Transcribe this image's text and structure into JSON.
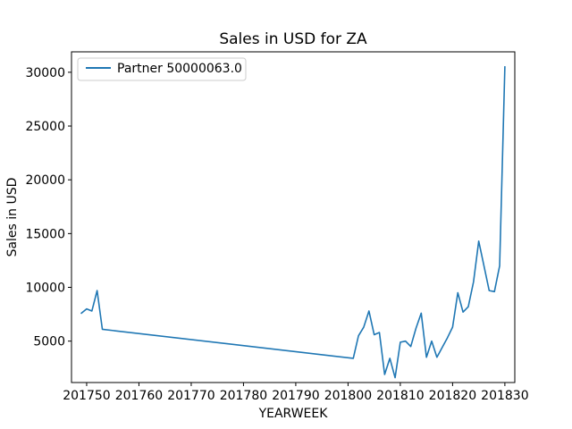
{
  "chart_data": {
    "type": "line",
    "title": "Sales in USD for ZA",
    "xlabel": "YEARWEEK",
    "ylabel": "Sales in USD",
    "xlim": [
      201747.1,
      201831.9
    ],
    "ylim": [
      1150,
      31900
    ],
    "xticks": [
      201750,
      201760,
      201770,
      201780,
      201790,
      201800,
      201810,
      201820,
      201830
    ],
    "yticks": [
      5000,
      10000,
      15000,
      20000,
      25000,
      30000
    ],
    "grid": false,
    "legend": "top-left",
    "series": [
      {
        "name": "Partner 50000063.0",
        "color": "#1f77b4",
        "x": [
          201749,
          201750,
          201751,
          201752,
          201753,
          201801,
          201802,
          201803,
          201804,
          201805,
          201806,
          201807,
          201808,
          201809,
          201810,
          201811,
          201812,
          201813,
          201814,
          201815,
          201816,
          201817,
          201818,
          201819,
          201820,
          201821,
          201822,
          201823,
          201824,
          201825,
          201826,
          201827,
          201828,
          201829,
          201830
        ],
        "y": [
          7600,
          8000,
          7800,
          9700,
          6100,
          3400,
          5500,
          6300,
          7800,
          5600,
          5800,
          1900,
          3400,
          1600,
          4900,
          5000,
          4500,
          6200,
          7600,
          3500,
          5000,
          3500,
          4400,
          5300,
          6300,
          9500,
          7700,
          8200,
          10500,
          14300,
          12000,
          9700,
          9600,
          12000,
          30500
        ]
      }
    ]
  }
}
